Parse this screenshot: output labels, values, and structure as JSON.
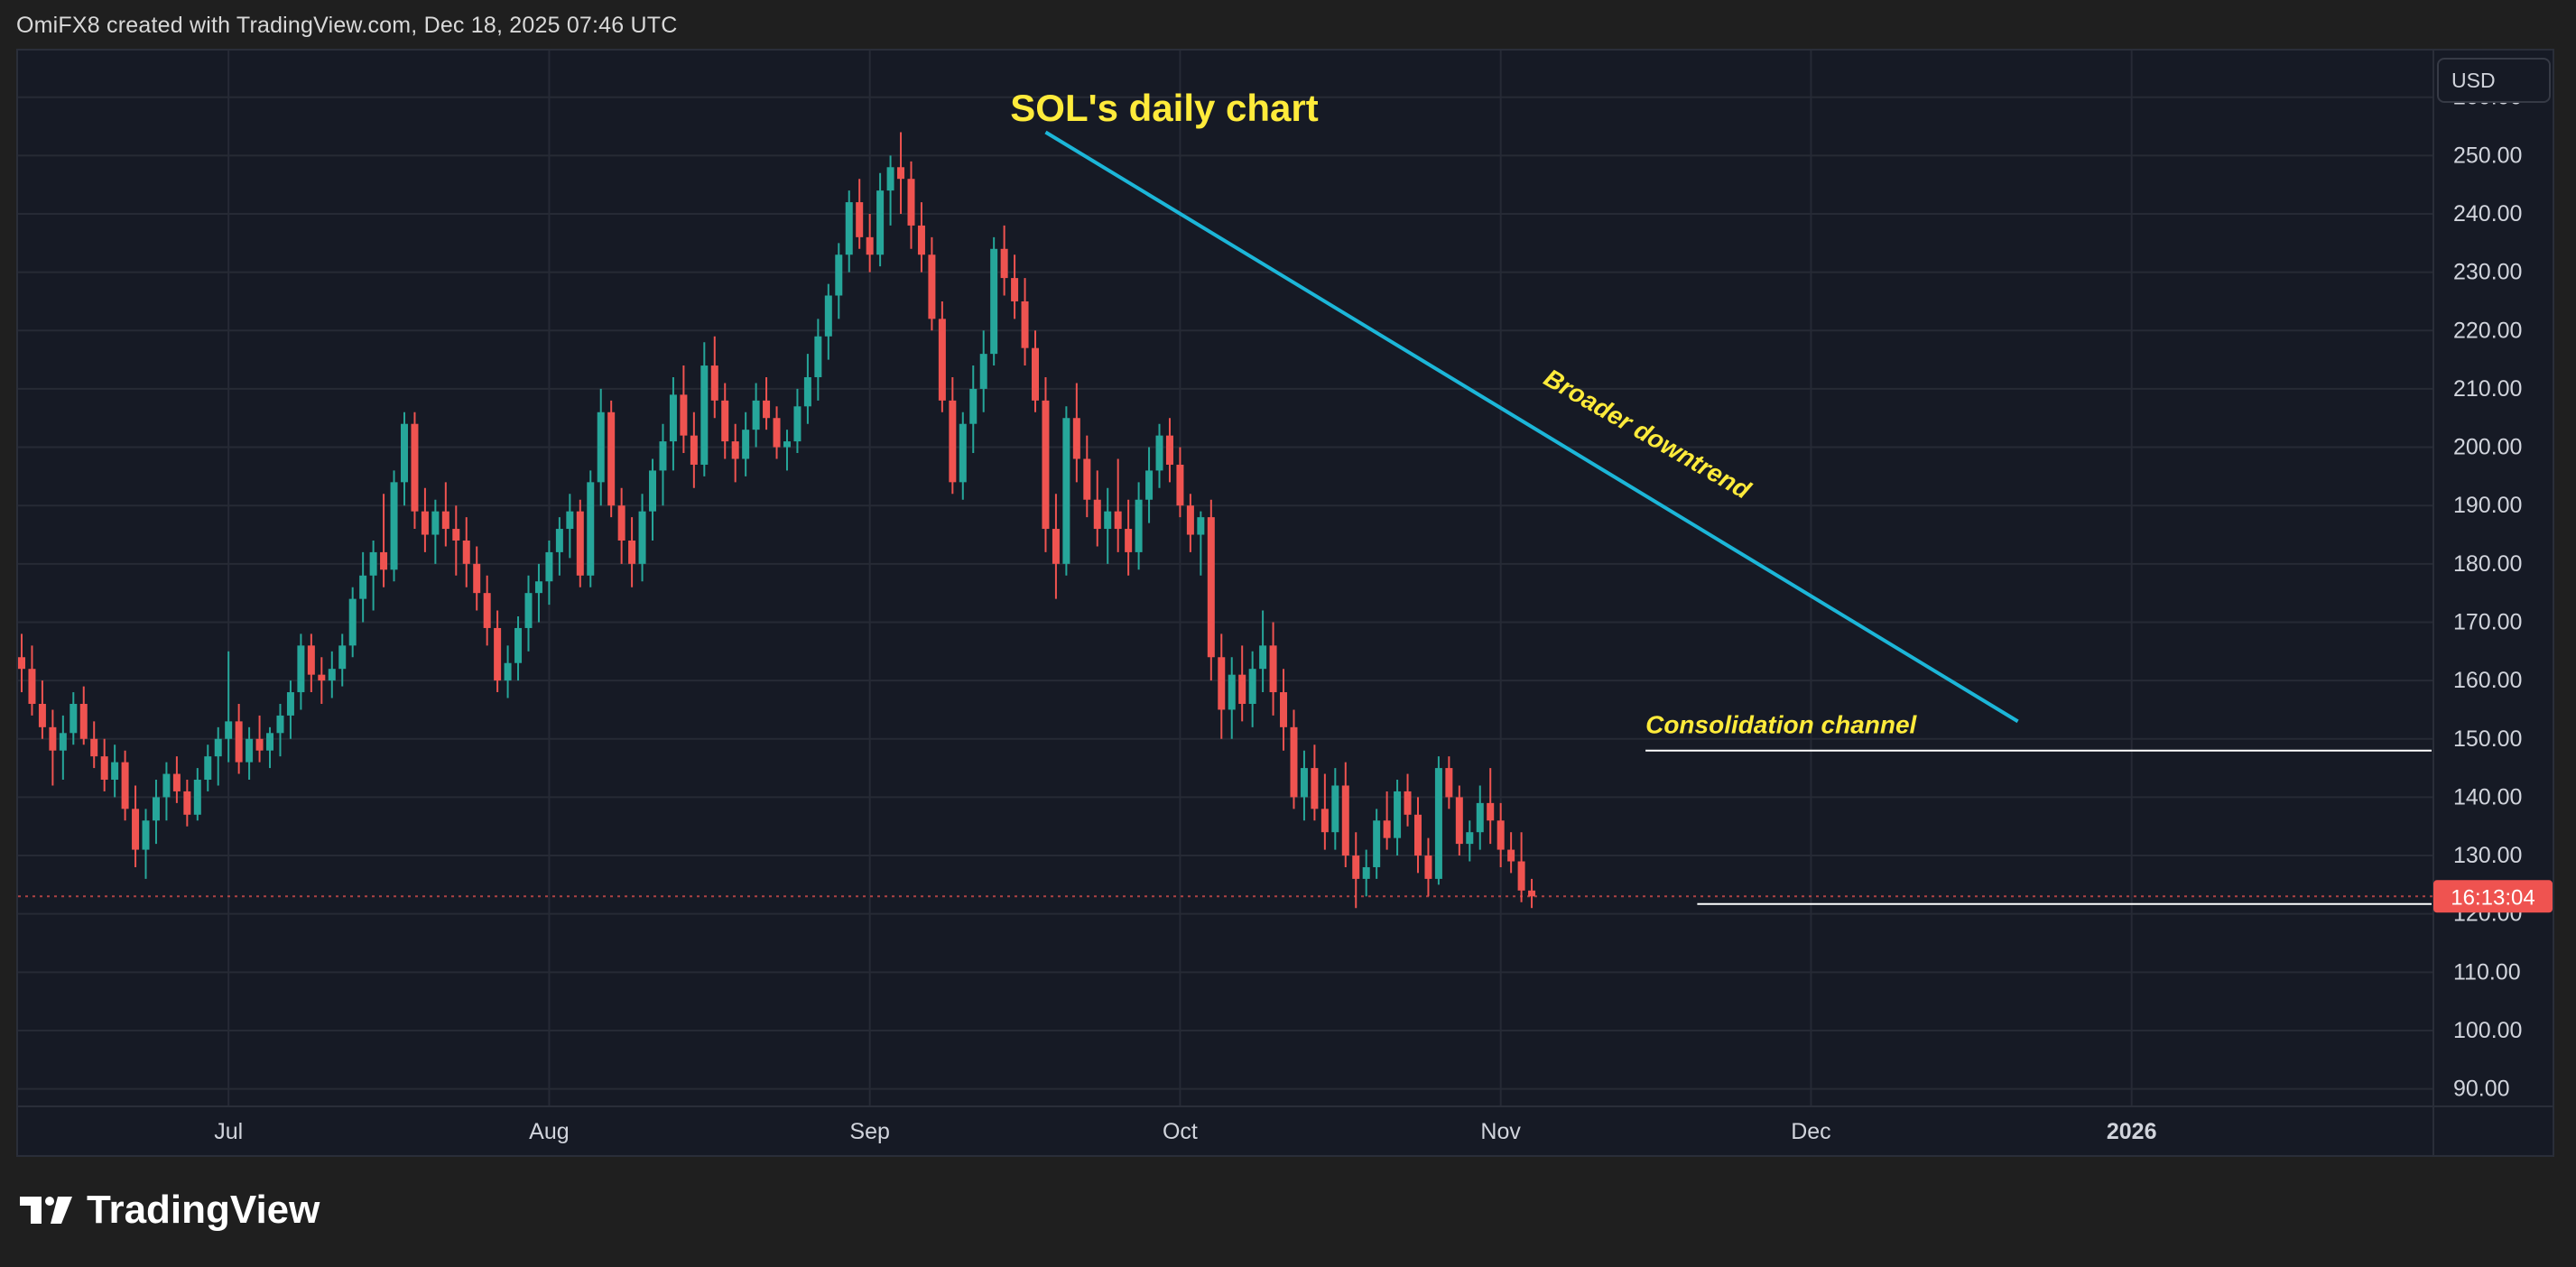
{
  "header": {
    "attribution": "OmiFX8 created with TradingView.com, Dec 18, 2025 07:46 UTC"
  },
  "footer": {
    "logo_text": "TradingView"
  },
  "price_scale": {
    "currency": "USD",
    "countdown": "16:13:04"
  },
  "colors": {
    "up": "#26a69a",
    "down": "#ef5350",
    "background": "#161a25",
    "grid": "#262a35",
    "trendline": "#1cb6d8",
    "annotation": "#ffeb3b",
    "channel_line": "#ffffff"
  },
  "chart_data": {
    "type": "candlestick",
    "title": "SOL's daily chart",
    "y_ticks": [
      90,
      100,
      110,
      120,
      130,
      140,
      150,
      160,
      170,
      180,
      190,
      200,
      210,
      220,
      230,
      240,
      250,
      260
    ],
    "y_tick_labels": [
      "90.00",
      "100.00",
      "110.00",
      "120.00",
      "130.00",
      "140.00",
      "150.00",
      "160.00",
      "170.00",
      "180.00",
      "190.00",
      "200.00",
      "210.00",
      "220.00",
      "230.00",
      "240.00",
      "250.00",
      "260.00"
    ],
    "ylim": [
      87,
      268
    ],
    "x_range": [
      "2025-06-11",
      "2026-01-30"
    ],
    "x_ticks": [
      {
        "date": "2025-07-01",
        "label": "Jul"
      },
      {
        "date": "2025-08-01",
        "label": "Aug"
      },
      {
        "date": "2025-09-01",
        "label": "Sep"
      },
      {
        "date": "2025-10-01",
        "label": "Oct"
      },
      {
        "date": "2025-11-01",
        "label": "Nov"
      },
      {
        "date": "2025-12-01",
        "label": "Dec"
      },
      {
        "date": "2026-01-01",
        "label": "2026"
      }
    ],
    "candle_dates": [
      "2025-06-11",
      "2025-12-18"
    ],
    "candles_ohlc": [
      [
        164,
        168,
        158,
        162
      ],
      [
        162,
        166,
        154,
        156
      ],
      [
        156,
        160,
        150,
        152
      ],
      [
        152,
        155,
        142,
        148
      ],
      [
        148,
        154,
        143,
        151
      ],
      [
        151,
        158,
        149,
        156
      ],
      [
        156,
        159,
        149,
        150
      ],
      [
        150,
        153,
        145,
        147
      ],
      [
        147,
        150,
        141,
        143
      ],
      [
        143,
        149,
        140,
        146
      ],
      [
        146,
        148,
        136,
        138
      ],
      [
        138,
        142,
        128,
        131
      ],
      [
        131,
        138,
        126,
        136
      ],
      [
        136,
        143,
        132,
        140
      ],
      [
        140,
        146,
        136,
        144
      ],
      [
        144,
        147,
        139,
        141
      ],
      [
        141,
        143,
        135,
        137
      ],
      [
        137,
        145,
        136,
        143
      ],
      [
        143,
        149,
        141,
        147
      ],
      [
        147,
        152,
        142,
        150
      ],
      [
        150,
        165,
        146,
        153
      ],
      [
        153,
        156,
        144,
        146
      ],
      [
        146,
        152,
        143,
        150
      ],
      [
        150,
        154,
        146,
        148
      ],
      [
        148,
        152,
        145,
        151
      ],
      [
        151,
        156,
        147,
        154
      ],
      [
        154,
        160,
        150,
        158
      ],
      [
        158,
        168,
        155,
        166
      ],
      [
        166,
        168,
        158,
        161
      ],
      [
        161,
        164,
        156,
        160
      ],
      [
        160,
        165,
        157,
        162
      ],
      [
        162,
        168,
        159,
        166
      ],
      [
        166,
        176,
        164,
        174
      ],
      [
        174,
        182,
        170,
        178
      ],
      [
        178,
        184,
        172,
        182
      ],
      [
        182,
        192,
        176,
        179
      ],
      [
        179,
        196,
        177,
        194
      ],
      [
        194,
        206,
        190,
        204
      ],
      [
        204,
        206,
        186,
        189
      ],
      [
        189,
        193,
        182,
        185
      ],
      [
        185,
        191,
        180,
        189
      ],
      [
        189,
        194,
        183,
        186
      ],
      [
        186,
        190,
        178,
        184
      ],
      [
        184,
        188,
        176,
        180
      ],
      [
        180,
        183,
        172,
        175
      ],
      [
        175,
        178,
        166,
        169
      ],
      [
        169,
        172,
        158,
        160
      ],
      [
        160,
        166,
        157,
        163
      ],
      [
        163,
        171,
        160,
        169
      ],
      [
        169,
        178,
        165,
        175
      ],
      [
        175,
        180,
        170,
        177
      ],
      [
        177,
        184,
        173,
        182
      ],
      [
        182,
        188,
        178,
        186
      ],
      [
        186,
        192,
        181,
        189
      ],
      [
        189,
        191,
        176,
        178
      ],
      [
        178,
        196,
        176,
        194
      ],
      [
        194,
        210,
        190,
        206
      ],
      [
        206,
        208,
        188,
        190
      ],
      [
        190,
        193,
        180,
        184
      ],
      [
        184,
        188,
        176,
        180
      ],
      [
        180,
        192,
        177,
        189
      ],
      [
        189,
        198,
        184,
        196
      ],
      [
        196,
        204,
        190,
        201
      ],
      [
        201,
        212,
        196,
        209
      ],
      [
        209,
        214,
        199,
        202
      ],
      [
        202,
        206,
        193,
        197
      ],
      [
        197,
        218,
        195,
        214
      ],
      [
        214,
        219,
        205,
        208
      ],
      [
        208,
        211,
        198,
        201
      ],
      [
        201,
        204,
        194,
        198
      ],
      [
        198,
        206,
        195,
        203
      ],
      [
        203,
        211,
        200,
        208
      ],
      [
        208,
        212,
        203,
        205
      ],
      [
        205,
        207,
        198,
        200
      ],
      [
        200,
        203,
        196,
        201
      ],
      [
        201,
        210,
        199,
        207
      ],
      [
        207,
        216,
        204,
        212
      ],
      [
        212,
        222,
        208,
        219
      ],
      [
        219,
        228,
        215,
        226
      ],
      [
        226,
        235,
        222,
        233
      ],
      [
        233,
        244,
        230,
        242
      ],
      [
        242,
        246,
        234,
        236
      ],
      [
        236,
        240,
        230,
        233
      ],
      [
        233,
        247,
        231,
        244
      ],
      [
        244,
        250,
        238,
        248
      ],
      [
        248,
        254,
        240,
        246
      ],
      [
        246,
        249,
        234,
        238
      ],
      [
        238,
        242,
        230,
        233
      ],
      [
        233,
        236,
        220,
        222
      ],
      [
        222,
        225,
        206,
        208
      ],
      [
        208,
        212,
        192,
        194
      ],
      [
        194,
        206,
        191,
        204
      ],
      [
        204,
        214,
        199,
        210
      ],
      [
        210,
        220,
        206,
        216
      ],
      [
        216,
        236,
        214,
        234
      ],
      [
        234,
        238,
        226,
        229
      ],
      [
        229,
        233,
        222,
        225
      ],
      [
        225,
        229,
        214,
        217
      ],
      [
        217,
        220,
        206,
        208
      ],
      [
        208,
        212,
        182,
        186
      ],
      [
        186,
        192,
        174,
        180
      ],
      [
        180,
        207,
        178,
        205
      ],
      [
        205,
        211,
        194,
        198
      ],
      [
        198,
        202,
        188,
        191
      ],
      [
        191,
        196,
        183,
        186
      ],
      [
        186,
        193,
        180,
        189
      ],
      [
        189,
        198,
        182,
        186
      ],
      [
        186,
        191,
        178,
        182
      ],
      [
        182,
        194,
        179,
        191
      ],
      [
        191,
        200,
        187,
        196
      ],
      [
        196,
        204,
        193,
        202
      ],
      [
        202,
        205,
        194,
        197
      ],
      [
        197,
        200,
        188,
        190
      ],
      [
        190,
        192,
        182,
        185
      ],
      [
        185,
        189,
        178,
        188
      ],
      [
        188,
        191,
        160,
        164
      ],
      [
        164,
        168,
        150,
        155
      ],
      [
        155,
        164,
        150,
        161
      ],
      [
        161,
        166,
        153,
        156
      ],
      [
        156,
        165,
        152,
        162
      ],
      [
        162,
        172,
        158,
        166
      ],
      [
        166,
        170,
        154,
        158
      ],
      [
        158,
        162,
        148,
        152
      ],
      [
        152,
        155,
        138,
        140
      ],
      [
        140,
        148,
        136,
        145
      ],
      [
        145,
        149,
        136,
        138
      ],
      [
        138,
        144,
        131,
        134
      ],
      [
        134,
        145,
        131,
        142
      ],
      [
        142,
        146,
        128,
        130
      ],
      [
        130,
        134,
        121,
        126
      ],
      [
        126,
        131,
        123,
        128
      ],
      [
        128,
        138,
        126,
        136
      ],
      [
        136,
        141,
        131,
        133
      ],
      [
        133,
        143,
        130,
        141
      ],
      [
        141,
        144,
        135,
        137
      ],
      [
        137,
        140,
        127,
        130
      ],
      [
        130,
        133,
        123,
        126
      ],
      [
        126,
        147,
        125,
        145
      ],
      [
        145,
        147,
        138,
        140
      ],
      [
        140,
        142,
        130,
        132
      ],
      [
        132,
        136,
        129,
        134
      ],
      [
        134,
        142,
        131,
        139
      ],
      [
        139,
        145,
        132,
        136
      ],
      [
        136,
        139,
        128,
        131
      ],
      [
        131,
        134,
        127,
        129
      ],
      [
        129,
        134,
        122,
        124
      ],
      [
        124,
        126,
        121,
        123
      ]
    ],
    "trendline": {
      "from": {
        "date": "2025-09-18",
        "value": 254
      },
      "to": {
        "date": "2025-12-21",
        "value": 153
      }
    },
    "channel_top": {
      "from": {
        "date": "2025-11-15",
        "value": 148
      },
      "to": {
        "date": "2026-01-30",
        "value": 148
      }
    },
    "channel_bottom": {
      "from": {
        "date": "2025-11-20",
        "value": 121.7
      },
      "to": {
        "date": "2026-01-30",
        "value": 121.7
      }
    },
    "last_price": 123,
    "annotations": [
      {
        "text": "Broader downtrend",
        "date": "2025-11-05",
        "value": 211,
        "angle": -30
      },
      {
        "text": "Consolidation channel",
        "date": "2025-11-15",
        "value": 151,
        "angle": 0
      }
    ]
  }
}
